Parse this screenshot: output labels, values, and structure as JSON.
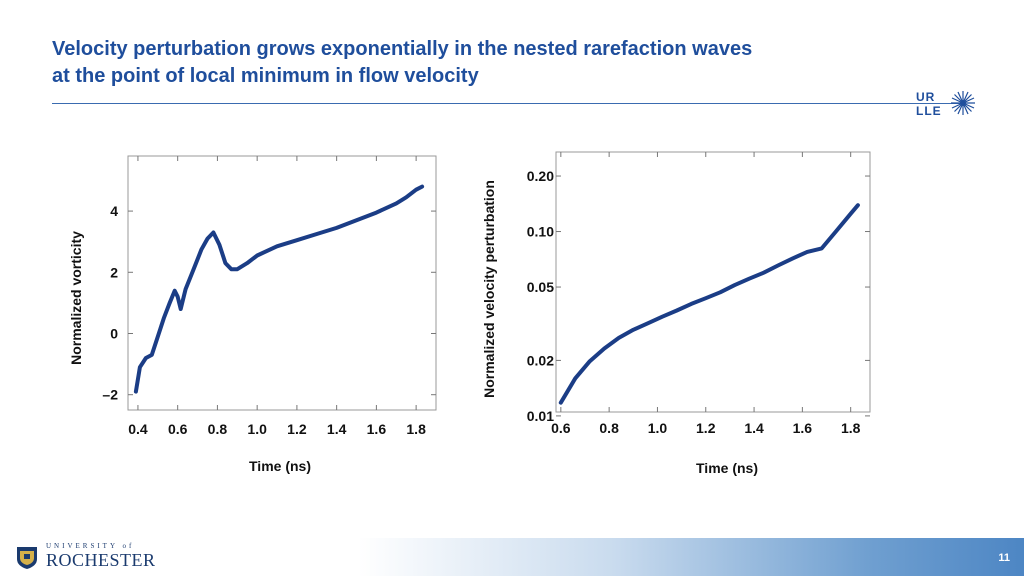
{
  "slide": {
    "title_line1": "Velocity perturbation grows exponentially in the nested rarefaction waves",
    "title_line2": "at the point of local minimum in flow velocity",
    "logo_line1": "UR",
    "logo_line2": "LLE",
    "footer_university": "UNIVERSITY of",
    "footer_name": "ROCHESTER",
    "page_number": "11"
  },
  "colors": {
    "title": "#1f4e9c",
    "line": "#1b3d86",
    "accent": "#3a6bb0"
  },
  "chart_data": [
    {
      "type": "line",
      "xlabel": "Time (ns)",
      "ylabel": "Normalized vorticity",
      "xticks": [
        "0.4",
        "0.6",
        "0.8",
        "1.0",
        "1.2",
        "1.4",
        "1.6",
        "1.8"
      ],
      "yticks": [
        "–2",
        "0",
        "2",
        "4"
      ],
      "xlim": [
        0.35,
        1.9
      ],
      "ylim": [
        -2.5,
        5.8
      ],
      "y_scale": "linear",
      "series": [
        {
          "x": [
            0.39,
            0.41,
            0.44,
            0.47,
            0.5,
            0.53,
            0.56,
            0.585,
            0.6,
            0.615,
            0.64,
            0.68,
            0.72,
            0.75,
            0.78,
            0.81,
            0.84,
            0.87,
            0.9,
            0.95,
            1.0,
            1.1,
            1.2,
            1.3,
            1.4,
            1.5,
            1.6,
            1.7,
            1.75,
            1.8,
            1.83
          ],
          "y": [
            -1.9,
            -1.1,
            -0.8,
            -0.7,
            -0.1,
            0.5,
            1.0,
            1.4,
            1.2,
            0.8,
            1.45,
            2.1,
            2.75,
            3.1,
            3.3,
            2.9,
            2.3,
            2.1,
            2.1,
            2.3,
            2.55,
            2.85,
            3.05,
            3.25,
            3.45,
            3.7,
            3.95,
            4.25,
            4.45,
            4.7,
            4.8
          ]
        }
      ]
    },
    {
      "type": "line",
      "xlabel": "Time (ns)",
      "ylabel": "Normalized velocity perturbation",
      "xticks": [
        "0.6",
        "0.8",
        "1.0",
        "1.2",
        "1.4",
        "1.6",
        "1.8"
      ],
      "yticks": [
        "0.01",
        "0.02",
        "0.05",
        "0.10",
        "0.20"
      ],
      "xlim": [
        0.58,
        1.88
      ],
      "ylim": [
        0.0105,
        0.27
      ],
      "y_scale": "log",
      "series": [
        {
          "x": [
            0.6,
            0.66,
            0.72,
            0.78,
            0.84,
            0.9,
            0.96,
            1.02,
            1.08,
            1.14,
            1.2,
            1.26,
            1.32,
            1.38,
            1.44,
            1.5,
            1.56,
            1.62,
            1.68,
            1.74,
            1.8,
            1.83
          ],
          "y": [
            0.0118,
            0.016,
            0.0198,
            0.0232,
            0.0265,
            0.0293,
            0.0318,
            0.0345,
            0.0373,
            0.0405,
            0.0435,
            0.0468,
            0.0512,
            0.0555,
            0.0598,
            0.0655,
            0.0715,
            0.0775,
            0.081,
            0.1005,
            0.125,
            0.139
          ]
        }
      ]
    }
  ]
}
